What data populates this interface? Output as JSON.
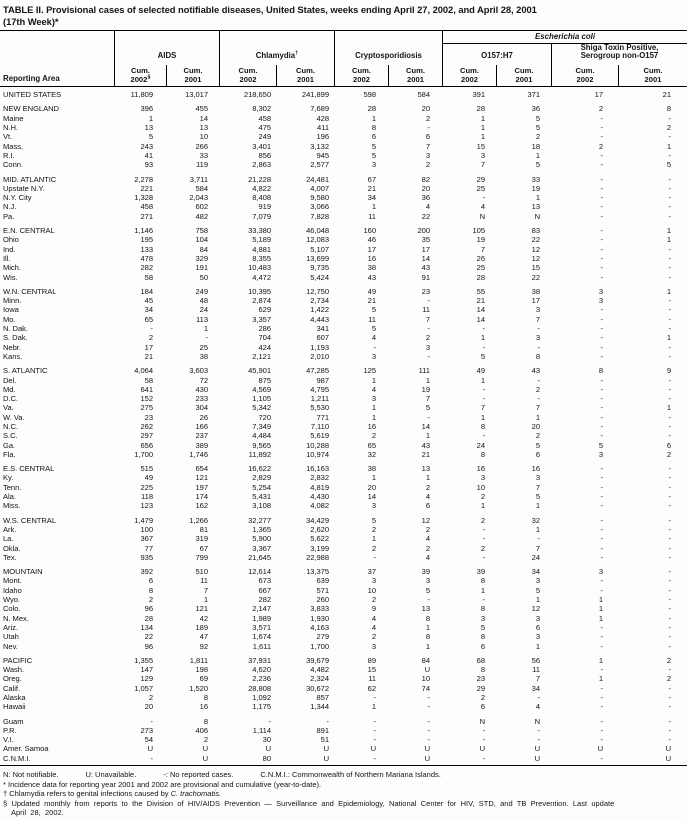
{
  "title": {
    "line1": "TABLE II. Provisional cases of selected notifiable diseases, United States, weeks ending April 27, 2002, and April 28, 2001",
    "line2": "(17th Week)*"
  },
  "table": {
    "header": {
      "reporting_area": "Reporting Area",
      "ecoli_span": "Escherichia coli",
      "groups": [
        {
          "label": "AIDS",
          "sup": ""
        },
        {
          "label": "Chlamydia",
          "sup": "†"
        },
        {
          "label": "Cryptosporidiosis",
          "sup": ""
        },
        {
          "label": "O157:H7",
          "sup": ""
        },
        {
          "label": "Shiga Toxin Positive,",
          "label2": "Serogroup non-O157"
        }
      ],
      "cols": [
        {
          "cum": "Cum.",
          "year": "2002",
          "sup": "§"
        },
        {
          "cum": "Cum.",
          "year": "2001",
          "sup": ""
        },
        {
          "cum": "Cum.",
          "year": "2002",
          "sup": ""
        },
        {
          "cum": "Cum.",
          "year": "2001",
          "sup": ""
        },
        {
          "cum": "Cum.",
          "year": "2002",
          "sup": ""
        },
        {
          "cum": "Cum.",
          "year": "2001",
          "sup": ""
        },
        {
          "cum": "Cum.",
          "year": "2002",
          "sup": ""
        },
        {
          "cum": "Cum.",
          "year": "2001",
          "sup": ""
        },
        {
          "cum": "Cum.",
          "year": "2002",
          "sup": ""
        },
        {
          "cum": "Cum.",
          "year": "2001",
          "sup": ""
        }
      ]
    },
    "rows": [
      {
        "area": "UNITED STATES",
        "gap": false,
        "values": [
          "11,809",
          "13,017",
          "218,650",
          "241,899",
          "598",
          "584",
          "391",
          "371",
          "17",
          "21"
        ]
      },
      {
        "area": "NEW ENGLAND",
        "gap": true,
        "values": [
          "396",
          "455",
          "8,302",
          "7,689",
          "28",
          "20",
          "28",
          "36",
          "2",
          "8"
        ]
      },
      {
        "area": "Maine",
        "gap": false,
        "values": [
          "1",
          "14",
          "458",
          "428",
          "1",
          "2",
          "1",
          "5",
          "-",
          "-"
        ]
      },
      {
        "area": "N.H.",
        "gap": false,
        "values": [
          "13",
          "13",
          "475",
          "411",
          "8",
          "-",
          "1",
          "5",
          "-",
          "2"
        ]
      },
      {
        "area": "Vt.",
        "gap": false,
        "values": [
          "5",
          "10",
          "249",
          "196",
          "6",
          "6",
          "1",
          "2",
          "-",
          "-"
        ]
      },
      {
        "area": "Mass.",
        "gap": false,
        "values": [
          "243",
          "266",
          "3,401",
          "3,132",
          "5",
          "7",
          "15",
          "18",
          "2",
          "1"
        ]
      },
      {
        "area": "R.I.",
        "gap": false,
        "values": [
          "41",
          "33",
          "856",
          "945",
          "5",
          "3",
          "3",
          "1",
          "-",
          "-"
        ]
      },
      {
        "area": "Conn.",
        "gap": false,
        "values": [
          "93",
          "119",
          "2,863",
          "2,577",
          "3",
          "2",
          "7",
          "5",
          "-",
          "5"
        ]
      },
      {
        "area": "MID. ATLANTIC",
        "gap": true,
        "values": [
          "2,278",
          "3,711",
          "21,228",
          "24,481",
          "67",
          "82",
          "29",
          "33",
          "-",
          "-"
        ]
      },
      {
        "area": "Upstate N.Y.",
        "gap": false,
        "values": [
          "221",
          "584",
          "4,822",
          "4,007",
          "21",
          "20",
          "25",
          "19",
          "-",
          "-"
        ]
      },
      {
        "area": "N.Y. City",
        "gap": false,
        "values": [
          "1,328",
          "2,043",
          "8,408",
          "9,580",
          "34",
          "36",
          "-",
          "1",
          "-",
          "-"
        ]
      },
      {
        "area": "N.J.",
        "gap": false,
        "values": [
          "458",
          "602",
          "919",
          "3,066",
          "1",
          "4",
          "4",
          "13",
          "-",
          "-"
        ]
      },
      {
        "area": "Pa.",
        "gap": false,
        "values": [
          "271",
          "482",
          "7,079",
          "7,828",
          "11",
          "22",
          "N",
          "N",
          "-",
          "-"
        ]
      },
      {
        "area": "E.N. CENTRAL",
        "gap": true,
        "values": [
          "1,146",
          "758",
          "33,380",
          "46,048",
          "160",
          "200",
          "105",
          "83",
          "-",
          "1"
        ]
      },
      {
        "area": "Ohio",
        "gap": false,
        "values": [
          "195",
          "104",
          "5,189",
          "12,083",
          "46",
          "35",
          "19",
          "22",
          "-",
          "1"
        ]
      },
      {
        "area": "Ind.",
        "gap": false,
        "values": [
          "133",
          "84",
          "4,881",
          "5,107",
          "17",
          "17",
          "7",
          "12",
          "-",
          "-"
        ]
      },
      {
        "area": "Ill.",
        "gap": false,
        "values": [
          "478",
          "329",
          "8,355",
          "13,699",
          "16",
          "14",
          "26",
          "12",
          "-",
          "-"
        ]
      },
      {
        "area": "Mich.",
        "gap": false,
        "values": [
          "282",
          "191",
          "10,483",
          "9,735",
          "38",
          "43",
          "25",
          "15",
          "-",
          "-"
        ]
      },
      {
        "area": "Wis.",
        "gap": false,
        "values": [
          "58",
          "50",
          "4,472",
          "5,424",
          "43",
          "91",
          "28",
          "22",
          "-",
          "-"
        ]
      },
      {
        "area": "W.N. CENTRAL",
        "gap": true,
        "values": [
          "184",
          "249",
          "10,395",
          "12,750",
          "49",
          "23",
          "55",
          "38",
          "3",
          "1"
        ]
      },
      {
        "area": "Minn.",
        "gap": false,
        "values": [
          "45",
          "48",
          "2,874",
          "2,734",
          "21",
          "-",
          "21",
          "17",
          "3",
          "-"
        ]
      },
      {
        "area": "Iowa",
        "gap": false,
        "values": [
          "34",
          "24",
          "629",
          "1,422",
          "5",
          "11",
          "14",
          "3",
          "-",
          "-"
        ]
      },
      {
        "area": "Mo.",
        "gap": false,
        "values": [
          "65",
          "113",
          "3,357",
          "4,443",
          "11",
          "7",
          "14",
          "7",
          "-",
          "-"
        ]
      },
      {
        "area": "N. Dak.",
        "gap": false,
        "values": [
          "-",
          "1",
          "286",
          "341",
          "5",
          "-",
          "-",
          "-",
          "-",
          "-"
        ]
      },
      {
        "area": "S. Dak.",
        "gap": false,
        "values": [
          "2",
          "-",
          "704",
          "607",
          "4",
          "2",
          "1",
          "3",
          "-",
          "1"
        ]
      },
      {
        "area": "Nebr.",
        "gap": false,
        "values": [
          "17",
          "25",
          "424",
          "1,193",
          "-",
          "3",
          "-",
          "-",
          "-",
          "-"
        ]
      },
      {
        "area": "Kans.",
        "gap": false,
        "values": [
          "21",
          "38",
          "2,121",
          "2,010",
          "3",
          "-",
          "5",
          "8",
          "-",
          "-"
        ]
      },
      {
        "area": "S. ATLANTIC",
        "gap": true,
        "values": [
          "4,064",
          "3,603",
          "45,901",
          "47,285",
          "125",
          "111",
          "49",
          "43",
          "8",
          "9"
        ]
      },
      {
        "area": "Del.",
        "gap": false,
        "values": [
          "58",
          "72",
          "875",
          "987",
          "1",
          "1",
          "1",
          "-",
          "-",
          "-"
        ]
      },
      {
        "area": "Md.",
        "gap": false,
        "values": [
          "641",
          "430",
          "4,569",
          "4,795",
          "4",
          "19",
          "-",
          "2",
          "-",
          "-"
        ]
      },
      {
        "area": "D.C.",
        "gap": false,
        "values": [
          "152",
          "233",
          "1,105",
          "1,211",
          "3",
          "7",
          "-",
          "-",
          "-",
          "-"
        ]
      },
      {
        "area": "Va.",
        "gap": false,
        "values": [
          "275",
          "304",
          "5,342",
          "5,530",
          "1",
          "5",
          "7",
          "7",
          "-",
          "1"
        ]
      },
      {
        "area": "W. Va.",
        "gap": false,
        "values": [
          "23",
          "26",
          "720",
          "771",
          "1",
          "-",
          "1",
          "1",
          "-",
          "-"
        ]
      },
      {
        "area": "N.C.",
        "gap": false,
        "values": [
          "262",
          "166",
          "7,349",
          "7,110",
          "16",
          "14",
          "8",
          "20",
          "-",
          "-"
        ]
      },
      {
        "area": "S.C.",
        "gap": false,
        "values": [
          "297",
          "237",
          "4,484",
          "5,619",
          "2",
          "1",
          "-",
          "2",
          "-",
          "-"
        ]
      },
      {
        "area": "Ga.",
        "gap": false,
        "values": [
          "656",
          "389",
          "9,565",
          "10,288",
          "65",
          "43",
          "24",
          "5",
          "5",
          "6"
        ]
      },
      {
        "area": "Fla.",
        "gap": false,
        "values": [
          "1,700",
          "1,746",
          "11,892",
          "10,974",
          "32",
          "21",
          "8",
          "6",
          "3",
          "2"
        ]
      },
      {
        "area": "E.S. CENTRAL",
        "gap": true,
        "values": [
          "515",
          "654",
          "16,622",
          "16,163",
          "38",
          "13",
          "16",
          "16",
          "-",
          "-"
        ]
      },
      {
        "area": "Ky.",
        "gap": false,
        "values": [
          "49",
          "121",
          "2,829",
          "2,832",
          "1",
          "1",
          "3",
          "3",
          "-",
          "-"
        ]
      },
      {
        "area": "Tenn.",
        "gap": false,
        "values": [
          "225",
          "197",
          "5,254",
          "4,819",
          "20",
          "2",
          "10",
          "7",
          "-",
          "-"
        ]
      },
      {
        "area": "Ala.",
        "gap": false,
        "values": [
          "118",
          "174",
          "5,431",
          "4,430",
          "14",
          "4",
          "2",
          "5",
          "-",
          "-"
        ]
      },
      {
        "area": "Miss.",
        "gap": false,
        "values": [
          "123",
          "162",
          "3,108",
          "4,082",
          "3",
          "6",
          "1",
          "1",
          "-",
          "-"
        ]
      },
      {
        "area": "W.S. CENTRAL",
        "gap": true,
        "values": [
          "1,479",
          "1,266",
          "32,277",
          "34,429",
          "5",
          "12",
          "2",
          "32",
          "-",
          "-"
        ]
      },
      {
        "area": "Ark.",
        "gap": false,
        "values": [
          "100",
          "81",
          "1,365",
          "2,620",
          "2",
          "2",
          "-",
          "1",
          "-",
          "-"
        ]
      },
      {
        "area": "La.",
        "gap": false,
        "values": [
          "367",
          "319",
          "5,900",
          "5,622",
          "1",
          "4",
          "-",
          "-",
          "-",
          "-"
        ]
      },
      {
        "area": "Okla.",
        "gap": false,
        "values": [
          "77",
          "67",
          "3,367",
          "3,199",
          "2",
          "2",
          "2",
          "7",
          "-",
          "-"
        ]
      },
      {
        "area": "Tex.",
        "gap": false,
        "values": [
          "935",
          "799",
          "21,645",
          "22,988",
          "-",
          "4",
          "-",
          "24",
          "-",
          "-"
        ]
      },
      {
        "area": "MOUNTAIN",
        "gap": true,
        "values": [
          "392",
          "510",
          "12,614",
          "13,375",
          "37",
          "39",
          "39",
          "34",
          "3",
          "-"
        ]
      },
      {
        "area": "Mont.",
        "gap": false,
        "values": [
          "6",
          "11",
          "673",
          "639",
          "3",
          "3",
          "8",
          "3",
          "-",
          "-"
        ]
      },
      {
        "area": "Idaho",
        "gap": false,
        "values": [
          "8",
          "7",
          "667",
          "571",
          "10",
          "5",
          "1",
          "5",
          "-",
          "-"
        ]
      },
      {
        "area": "Wyo.",
        "gap": false,
        "values": [
          "2",
          "1",
          "282",
          "260",
          "2",
          "-",
          "-",
          "1",
          "1",
          "-"
        ]
      },
      {
        "area": "Colo.",
        "gap": false,
        "values": [
          "96",
          "121",
          "2,147",
          "3,833",
          "9",
          "13",
          "8",
          "12",
          "1",
          "-"
        ]
      },
      {
        "area": "N. Mex.",
        "gap": false,
        "values": [
          "28",
          "42",
          "1,989",
          "1,930",
          "4",
          "8",
          "3",
          "3",
          "1",
          "-"
        ]
      },
      {
        "area": "Ariz.",
        "gap": false,
        "values": [
          "134",
          "189",
          "3,571",
          "4,163",
          "4",
          "1",
          "5",
          "6",
          "-",
          "-"
        ]
      },
      {
        "area": "Utah",
        "gap": false,
        "values": [
          "22",
          "47",
          "1,674",
          "279",
          "2",
          "8",
          "8",
          "3",
          "-",
          "-"
        ]
      },
      {
        "area": "Nev.",
        "gap": false,
        "values": [
          "96",
          "92",
          "1,611",
          "1,700",
          "3",
          "1",
          "6",
          "1",
          "-",
          "-"
        ]
      },
      {
        "area": "PACIFIC",
        "gap": true,
        "values": [
          "1,355",
          "1,811",
          "37,931",
          "39,679",
          "89",
          "84",
          "68",
          "56",
          "1",
          "2"
        ]
      },
      {
        "area": "Wash.",
        "gap": false,
        "values": [
          "147",
          "198",
          "4,620",
          "4,482",
          "15",
          "U",
          "8",
          "11",
          "-",
          "-"
        ]
      },
      {
        "area": "Oreg.",
        "gap": false,
        "values": [
          "129",
          "69",
          "2,236",
          "2,324",
          "11",
          "10",
          "23",
          "7",
          "1",
          "2"
        ]
      },
      {
        "area": "Calif.",
        "gap": false,
        "values": [
          "1,057",
          "1,520",
          "28,808",
          "30,672",
          "62",
          "74",
          "29",
          "34",
          "-",
          "-"
        ]
      },
      {
        "area": "Alaska",
        "gap": false,
        "values": [
          "2",
          "8",
          "1,092",
          "857",
          "-",
          "-",
          "2",
          "-",
          "-",
          "-"
        ]
      },
      {
        "area": "Hawaii",
        "gap": false,
        "values": [
          "20",
          "16",
          "1,175",
          "1,344",
          "1",
          "-",
          "6",
          "4",
          "-",
          "-"
        ]
      },
      {
        "area": "Guam",
        "gap": true,
        "values": [
          "-",
          "8",
          "-",
          "-",
          "-",
          "-",
          "N",
          "N",
          "-",
          "-"
        ]
      },
      {
        "area": "P.R.",
        "gap": false,
        "values": [
          "273",
          "406",
          "1,114",
          "891",
          "-",
          "-",
          "-",
          "-",
          "-",
          "-"
        ]
      },
      {
        "area": "V.I.",
        "gap": false,
        "values": [
          "54",
          "2",
          "30",
          "51",
          "-",
          "-",
          "-",
          "-",
          "-",
          "-"
        ]
      },
      {
        "area": "Amer. Samoa",
        "gap": false,
        "values": [
          "U",
          "U",
          "U",
          "U",
          "U",
          "U",
          "U",
          "U",
          "U",
          "U"
        ]
      },
      {
        "area": "C.N.M.I.",
        "gap": false,
        "values": [
          "-",
          "U",
          "80",
          "U",
          "-",
          "U",
          "-",
          "U",
          "-",
          "U"
        ]
      }
    ]
  },
  "footnotes": {
    "legend": [
      "N: Not notifiable.",
      "U: Unavailable.",
      "-: No reported cases.",
      "C.N.M.I.: Commonwealth of Northern Mariana Islands."
    ],
    "star": "* Incidence data for reporting year 2001 and 2002 are provisional and cumulative (year-to-date).",
    "dagger_pre": "† Chlamydia refers to genital infections caused by ",
    "dagger_italic": "C. trachomatis.",
    "section_line1": "§ Updated monthly from reports to the Division of HIV/AIDS Prevention — Surveillance and Epidemiology, National Center for HIV, STD, and TB Prevention. Last update",
    "section_line2": "April 28, 2002."
  }
}
